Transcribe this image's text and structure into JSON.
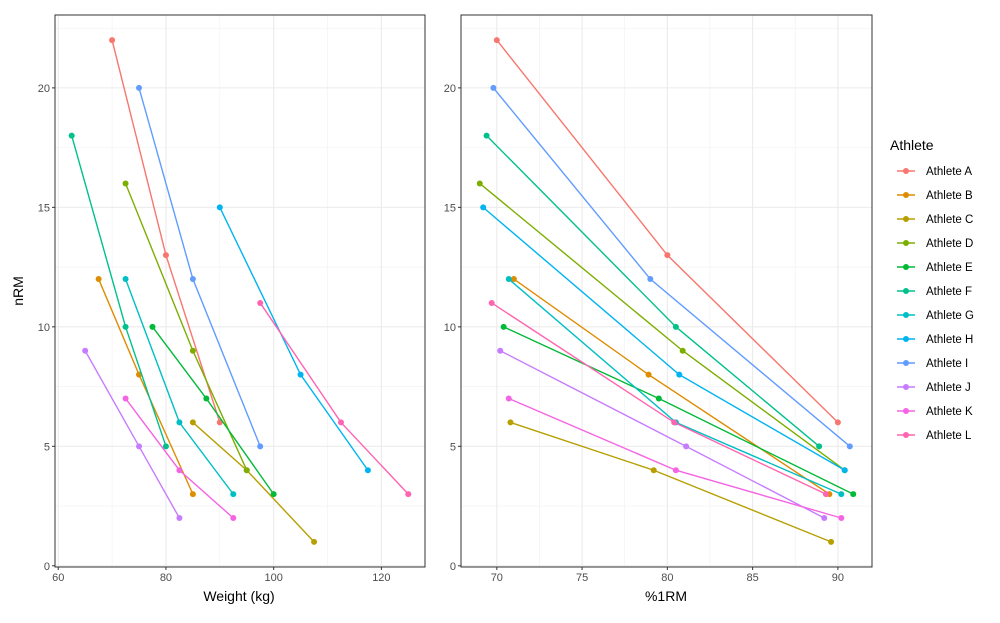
{
  "chart_data": [
    {
      "type": "line",
      "xlabel": "Weight (kg)",
      "ylabel": "nRM",
      "xlim": [
        59.4,
        128.1
      ],
      "ylim": [
        -0.05,
        23.05
      ],
      "xticks": [
        60,
        80,
        100,
        120
      ],
      "xminor": [
        70,
        90,
        110
      ],
      "yticks": [
        0,
        5,
        10,
        15,
        20
      ],
      "yminor": [
        2.5,
        7.5,
        12.5,
        17.5,
        22.5
      ],
      "grid": true,
      "series": [
        {
          "name": "Athlete A",
          "x": [
            70,
            80,
            90
          ],
          "y": [
            22,
            13,
            6
          ]
        },
        {
          "name": "Athlete B",
          "x": [
            67.5,
            75,
            85
          ],
          "y": [
            12,
            8,
            3
          ]
        },
        {
          "name": "Athlete C",
          "x": [
            85,
            95,
            107.5
          ],
          "y": [
            6,
            4,
            1
          ]
        },
        {
          "name": "Athlete D",
          "x": [
            72.5,
            85,
            95
          ],
          "y": [
            16,
            9,
            4
          ]
        },
        {
          "name": "Athlete E",
          "x": [
            77.5,
            87.5,
            100
          ],
          "y": [
            10,
            7,
            3
          ]
        },
        {
          "name": "Athlete F",
          "x": [
            62.5,
            72.5,
            80
          ],
          "y": [
            18,
            10,
            5
          ]
        },
        {
          "name": "Athlete G",
          "x": [
            72.5,
            82.5,
            92.5
          ],
          "y": [
            12,
            6,
            3
          ]
        },
        {
          "name": "Athlete H",
          "x": [
            90,
            105,
            117.5
          ],
          "y": [
            15,
            8,
            4
          ]
        },
        {
          "name": "Athlete I",
          "x": [
            75,
            85,
            97.5
          ],
          "y": [
            20,
            12,
            5
          ]
        },
        {
          "name": "Athlete J",
          "x": [
            65,
            75,
            82.5
          ],
          "y": [
            9,
            5,
            2
          ]
        },
        {
          "name": "Athlete K",
          "x": [
            72.5,
            82.5,
            92.5
          ],
          "y": [
            7,
            4,
            2
          ]
        },
        {
          "name": "Athlete L",
          "x": [
            97.5,
            112.5,
            125
          ],
          "y": [
            11,
            6,
            3
          ]
        }
      ]
    },
    {
      "type": "line",
      "xlabel": "%1RM",
      "ylabel": "",
      "xlim": [
        67.9,
        92.0
      ],
      "ylim": [
        -0.05,
        23.05
      ],
      "xticks": [
        70,
        75,
        80,
        85,
        90
      ],
      "xminor": [
        72.5,
        77.5,
        82.5,
        87.5
      ],
      "yticks": [
        0,
        5,
        10,
        15,
        20
      ],
      "yminor": [
        2.5,
        7.5,
        12.5,
        17.5,
        22.5
      ],
      "grid": true,
      "series": [
        {
          "name": "Athlete A",
          "x": [
            70,
            80,
            90
          ],
          "y": [
            22,
            13,
            6
          ]
        },
        {
          "name": "Athlete B",
          "x": [
            71.0,
            78.9,
            89.5
          ],
          "y": [
            12,
            8,
            3
          ]
        },
        {
          "name": "Athlete C",
          "x": [
            70.8,
            79.2,
            89.6
          ],
          "y": [
            6,
            4,
            1
          ]
        },
        {
          "name": "Athlete D",
          "x": [
            69.0,
            80.9,
            90.4
          ],
          "y": [
            16,
            9,
            4
          ]
        },
        {
          "name": "Athlete E",
          "x": [
            70.4,
            79.5,
            90.9
          ],
          "y": [
            10,
            7,
            3
          ]
        },
        {
          "name": "Athlete F",
          "x": [
            69.4,
            80.5,
            88.9
          ],
          "y": [
            18,
            10,
            5
          ]
        },
        {
          "name": "Athlete G",
          "x": [
            70.7,
            80.5,
            90.2
          ],
          "y": [
            12,
            6,
            3
          ]
        },
        {
          "name": "Athlete H",
          "x": [
            69.2,
            80.7,
            90.4
          ],
          "y": [
            15,
            8,
            4
          ]
        },
        {
          "name": "Athlete I",
          "x": [
            69.8,
            79.0,
            90.7
          ],
          "y": [
            20,
            12,
            5
          ]
        },
        {
          "name": "Athlete J",
          "x": [
            70.2,
            81.1,
            89.2
          ],
          "y": [
            9,
            5,
            2
          ]
        },
        {
          "name": "Athlete K",
          "x": [
            70.7,
            80.5,
            90.2
          ],
          "y": [
            7,
            4,
            2
          ]
        },
        {
          "name": "Athlete L",
          "x": [
            69.7,
            80.4,
            89.3
          ],
          "y": [
            11,
            6,
            3
          ]
        }
      ]
    }
  ],
  "legend": {
    "title": "Athlete",
    "placement": "right",
    "items": [
      "Athlete A",
      "Athlete B",
      "Athlete C",
      "Athlete D",
      "Athlete E",
      "Athlete F",
      "Athlete G",
      "Athlete H",
      "Athlete I",
      "Athlete J",
      "Athlete K",
      "Athlete L"
    ]
  },
  "colors": [
    "#F8766D",
    "#DE8C00",
    "#B79F00",
    "#7CAE00",
    "#00BA38",
    "#00C08B",
    "#00BFC4",
    "#00B4F0",
    "#619CFF",
    "#C77CFF",
    "#F564E3",
    "#FF64B0"
  ]
}
